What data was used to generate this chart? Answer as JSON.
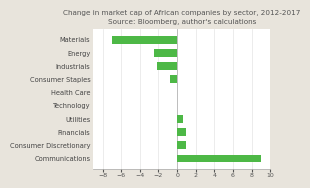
{
  "title": "Change in market cap of African companies by sector, 2012-2017",
  "subtitle": "Source: Bloomberg, author's calculations",
  "categories": [
    "Communications",
    "Consumer Discretionary",
    "Financials",
    "Utilities",
    "Technology",
    "Health Care",
    "Consumer Staples",
    "Industrials",
    "Energy",
    "Materials"
  ],
  "values": [
    9.0,
    1.0,
    1.0,
    0.6,
    0.0,
    0.0,
    -0.8,
    -2.2,
    -2.5,
    -7.0
  ],
  "bar_color": "#4db846",
  "background_color": "#e8e4dc",
  "plot_bg_color": "#ffffff",
  "xlim": [
    -9,
    10
  ],
  "xticks": [
    -8,
    -6,
    -4,
    -2,
    0,
    2,
    4,
    6,
    8,
    10
  ],
  "title_fontsize": 5.2,
  "subtitle_fontsize": 4.8,
  "tick_fontsize": 4.5,
  "label_fontsize": 4.8
}
